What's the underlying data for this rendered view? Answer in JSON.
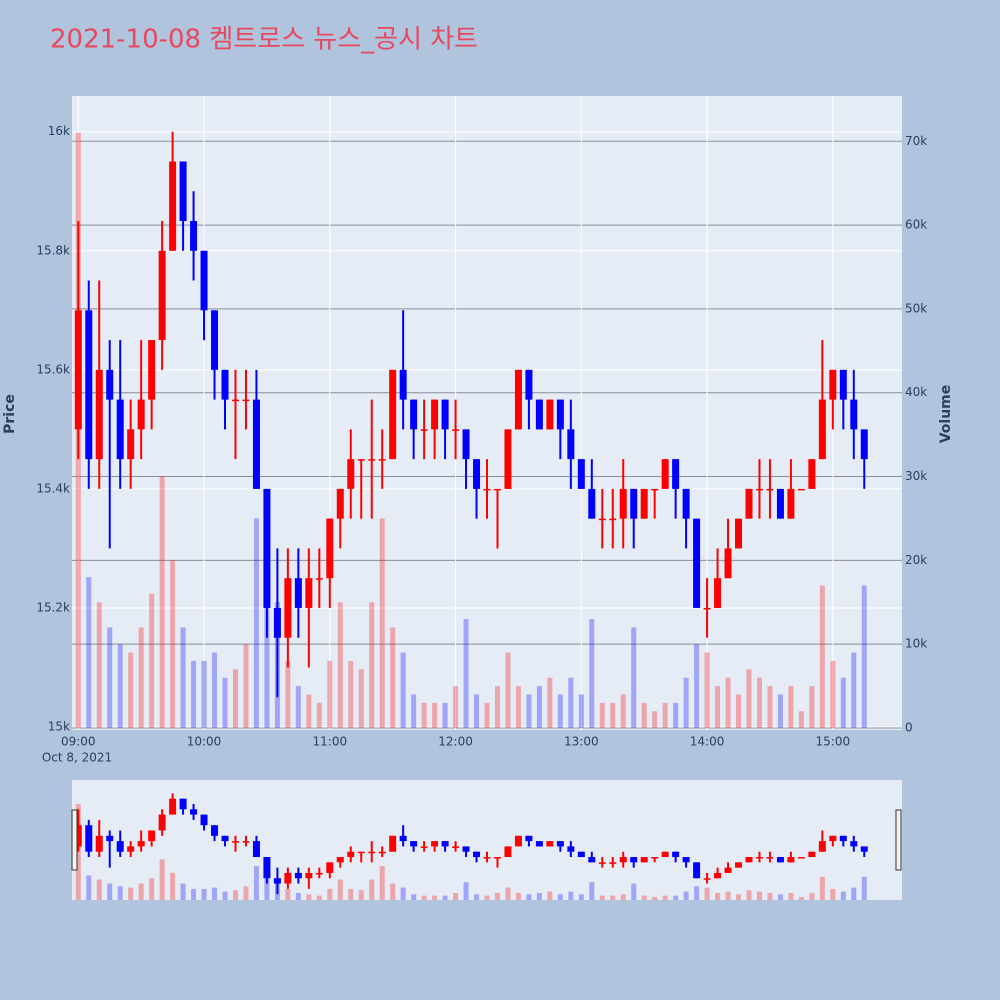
{
  "chart_data": {
    "type": "candlestick",
    "title": "2021-10-08 켐트로스 뉴스_공시 차트",
    "ylabel": "Price",
    "y2label": "Volume",
    "x": [
      "2021-10-08 09:00",
      "2021-10-08 09:05",
      "2021-10-08 09:10",
      "2021-10-08 09:15",
      "2021-10-08 09:20",
      "2021-10-08 09:25",
      "2021-10-08 09:30",
      "2021-10-08 09:35",
      "2021-10-08 09:40",
      "2021-10-08 09:45",
      "2021-10-08 09:50",
      "2021-10-08 09:55",
      "2021-10-08 10:00",
      "2021-10-08 10:05",
      "2021-10-08 10:10",
      "2021-10-08 10:15",
      "2021-10-08 10:20",
      "2021-10-08 10:25",
      "2021-10-08 10:30",
      "2021-10-08 10:35",
      "2021-10-08 10:40",
      "2021-10-08 10:45",
      "2021-10-08 10:50",
      "2021-10-08 10:55",
      "2021-10-08 11:00",
      "2021-10-08 11:05",
      "2021-10-08 11:10",
      "2021-10-08 11:15",
      "2021-10-08 11:20",
      "2021-10-08 11:25",
      "2021-10-08 11:30",
      "2021-10-08 11:35",
      "2021-10-08 11:40",
      "2021-10-08 11:45",
      "2021-10-08 11:50",
      "2021-10-08 11:55",
      "2021-10-08 12:00",
      "2021-10-08 12:05",
      "2021-10-08 12:10",
      "2021-10-08 12:15",
      "2021-10-08 12:20",
      "2021-10-08 12:25",
      "2021-10-08 12:30",
      "2021-10-08 12:35",
      "2021-10-08 12:40",
      "2021-10-08 12:45",
      "2021-10-08 12:50",
      "2021-10-08 12:55",
      "2021-10-08 13:00",
      "2021-10-08 13:05",
      "2021-10-08 13:10",
      "2021-10-08 13:15",
      "2021-10-08 13:20",
      "2021-10-08 13:25",
      "2021-10-08 13:30",
      "2021-10-08 13:35",
      "2021-10-08 13:40",
      "2021-10-08 13:45",
      "2021-10-08 13:50",
      "2021-10-08 13:55",
      "2021-10-08 14:00",
      "2021-10-08 14:05",
      "2021-10-08 14:10",
      "2021-10-08 14:15",
      "2021-10-08 14:20",
      "2021-10-08 14:25",
      "2021-10-08 14:30",
      "2021-10-08 14:35",
      "2021-10-08 14:40",
      "2021-10-08 14:45",
      "2021-10-08 14:50",
      "2021-10-08 14:55",
      "2021-10-08 15:00",
      "2021-10-08 15:05",
      "2021-10-08 15:10",
      "2021-10-08 15:15"
    ],
    "open": [
      15500,
      15700,
      15450,
      15600,
      15550,
      15450,
      15500,
      15550,
      15650,
      15800,
      15950,
      15850,
      15800,
      15700,
      15600,
      15550,
      15550,
      15550,
      15400,
      15200,
      15150,
      15250,
      15200,
      15250,
      15250,
      15350,
      15400,
      15450,
      15450,
      15450,
      15450,
      15600,
      15550,
      15500,
      15500,
      15550,
      15500,
      15500,
      15450,
      15400,
      15400,
      15400,
      15500,
      15600,
      15550,
      15500,
      15550,
      15500,
      15450,
      15400,
      15350,
      15350,
      15350,
      15400,
      15350,
      15400,
      15400,
      15450,
      15400,
      15350,
      15200,
      15200,
      15250,
      15300,
      15350,
      15400,
      15400,
      15400,
      15350,
      15400,
      15400,
      15450,
      15550,
      15600,
      15550,
      15500
    ],
    "high": [
      15850,
      15750,
      15750,
      15650,
      15650,
      15550,
      15650,
      15650,
      15850,
      16000,
      15950,
      15900,
      15800,
      15700,
      15600,
      15600,
      15600,
      15600,
      15400,
      15300,
      15300,
      15300,
      15300,
      15300,
      15350,
      15400,
      15500,
      15450,
      15550,
      15500,
      15600,
      15700,
      15550,
      15550,
      15550,
      15550,
      15550,
      15500,
      15450,
      15450,
      15400,
      15500,
      15600,
      15600,
      15550,
      15550,
      15550,
      15550,
      15450,
      15450,
      15400,
      15400,
      15450,
      15400,
      15400,
      15400,
      15450,
      15450,
      15400,
      15350,
      15250,
      15300,
      15350,
      15350,
      15400,
      15450,
      15450,
      15400,
      15450,
      15400,
      15450,
      15650,
      15600,
      15600,
      15600,
      15500
    ],
    "low": [
      15450,
      15400,
      15400,
      15300,
      15400,
      15400,
      15450,
      15500,
      15600,
      15800,
      15800,
      15750,
      15650,
      15550,
      15500,
      15450,
      15500,
      15400,
      15150,
      15050,
      15100,
      15150,
      15100,
      15200,
      15200,
      15300,
      15350,
      15350,
      15350,
      15400,
      15450,
      15500,
      15450,
      15450,
      15450,
      15450,
      15450,
      15400,
      15350,
      15350,
      15300,
      15400,
      15500,
      15500,
      15500,
      15500,
      15450,
      15400,
      15400,
      15350,
      15300,
      15300,
      15300,
      15300,
      15350,
      15350,
      15400,
      15350,
      15300,
      15200,
      15150,
      15200,
      15250,
      15300,
      15350,
      15350,
      15350,
      15350,
      15350,
      15400,
      15400,
      15450,
      15500,
      15500,
      15450,
      15400
    ],
    "close": [
      15700,
      15450,
      15600,
      15550,
      15450,
      15500,
      15550,
      15650,
      15800,
      15950,
      15850,
      15800,
      15700,
      15600,
      15550,
      15550,
      15550,
      15400,
      15200,
      15150,
      15250,
      15200,
      15250,
      15250,
      15350,
      15400,
      15450,
      15450,
      15450,
      15450,
      15600,
      15550,
      15500,
      15500,
      15550,
      15500,
      15500,
      15450,
      15400,
      15400,
      15400,
      15500,
      15600,
      15550,
      15500,
      15550,
      15500,
      15450,
      15400,
      15350,
      15350,
      15350,
      15400,
      15350,
      15400,
      15400,
      15450,
      15400,
      15350,
      15200,
      15200,
      15250,
      15300,
      15350,
      15400,
      15400,
      15400,
      15350,
      15400,
      15400,
      15450,
      15550,
      15600,
      15550,
      15500,
      15450
    ],
    "volume": [
      71000,
      18000,
      15000,
      12000,
      10000,
      9000,
      12000,
      16000,
      30000,
      20000,
      12000,
      8000,
      8000,
      9000,
      6000,
      7000,
      10000,
      25000,
      20000,
      15000,
      8000,
      5000,
      4000,
      3000,
      8000,
      15000,
      8000,
      7000,
      15000,
      25000,
      12000,
      9000,
      4000,
      3000,
      3000,
      3000,
      5000,
      13000,
      4000,
      3000,
      5000,
      9000,
      5000,
      4000,
      5000,
      6000,
      4000,
      6000,
      4000,
      13000,
      3000,
      3000,
      4000,
      12000,
      3000,
      2000,
      3000,
      3000,
      6000,
      10000,
      9000,
      5000,
      6000,
      4000,
      7000,
      6000,
      5000,
      4000,
      5000,
      2000,
      5000,
      17000,
      8000,
      6000,
      9000,
      17000
    ],
    "increasing_color": "#ff0000",
    "decreasing_color": "#0000ff",
    "xlim": [
      "2021-10-08 08:57",
      "2021-10-08 15:33"
    ],
    "xticks": [
      {
        "value": "2021-10-08 09:00",
        "label": "09:00"
      },
      {
        "value": "2021-10-08 10:00",
        "label": "10:00"
      },
      {
        "value": "2021-10-08 11:00",
        "label": "11:00"
      },
      {
        "value": "2021-10-08 12:00",
        "label": "12:00"
      },
      {
        "value": "2021-10-08 13:00",
        "label": "13:00"
      },
      {
        "value": "2021-10-08 14:00",
        "label": "14:00"
      },
      {
        "value": "2021-10-08 15:00",
        "label": "15:00"
      }
    ],
    "xtick_date": "Oct 8, 2021",
    "ylim": [
      14995,
      16060
    ],
    "yticks": [
      {
        "value": 15000,
        "label": "15k"
      },
      {
        "value": 15200,
        "label": "15.2k"
      },
      {
        "value": 15400,
        "label": "15.4k"
      },
      {
        "value": 15600,
        "label": "15.6k"
      },
      {
        "value": 15800,
        "label": "15.8k"
      },
      {
        "value": 16000,
        "label": "16k"
      }
    ],
    "y2lim": [
      -240,
      75400
    ],
    "y2ticks": [
      0,
      {
        "value": 10000,
        "label": "10k"
      },
      {
        "value": 20000,
        "label": "20k"
      },
      {
        "value": 30000,
        "label": "30k"
      },
      {
        "value": 40000,
        "label": "40k"
      },
      {
        "value": 50000,
        "label": "50k"
      },
      {
        "value": 60000,
        "label": "60k"
      },
      {
        "value": 70000,
        "label": "70k"
      }
    ],
    "grid": true,
    "rangeslider": true
  }
}
